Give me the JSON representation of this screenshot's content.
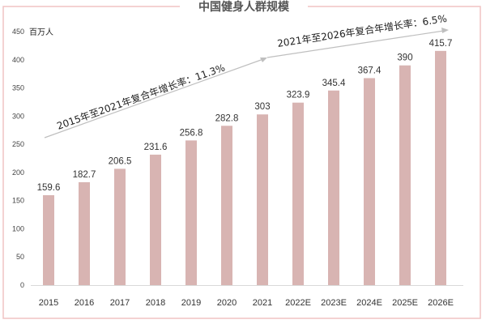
{
  "chart_data": {
    "type": "bar",
    "title": "中国健身人群规模",
    "ylabel": "百万人",
    "categories": [
      "2015",
      "2016",
      "2017",
      "2018",
      "2019",
      "2020",
      "2021",
      "2022E",
      "2023E",
      "2024E",
      "2025E",
      "2026E"
    ],
    "values": [
      159.6,
      182.7,
      206.5,
      231.6,
      256.8,
      282.8,
      303,
      323.9,
      345.4,
      367.4,
      390,
      415.7
    ],
    "data_labels": [
      "159.6",
      "182.7",
      "206.5",
      "231.6",
      "256.8",
      "282.8",
      "303",
      "323.9",
      "345.4",
      "367.4",
      "390",
      "415.7"
    ],
    "ylim": [
      0,
      450
    ],
    "yticks": [
      0,
      50,
      100,
      150,
      200,
      250,
      300,
      350,
      400,
      450
    ],
    "grid": false,
    "bar_color": "#d8b4b2",
    "border_color": "#f0c4c4",
    "annotations": [
      {
        "text": "2015年至2021年复合年增长率：11.3%",
        "from": "2015",
        "to": "2021"
      },
      {
        "text": "2021年至2026年复合年增长率：6.5%",
        "from": "2021",
        "to": "2026E"
      }
    ]
  }
}
